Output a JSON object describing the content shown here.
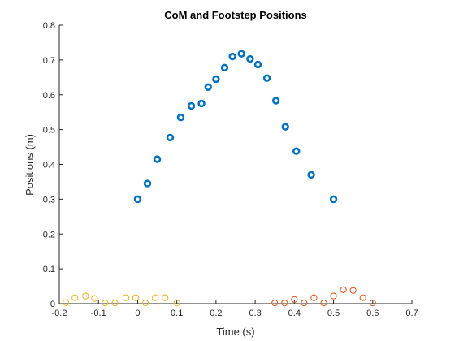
{
  "chart_data": {
    "type": "scatter",
    "title": "CoM and Footstep Positions",
    "xlabel": "Time (s)",
    "ylabel": "Positions (m)",
    "xlim": [
      -0.2,
      0.7
    ],
    "ylim": [
      0,
      0.8
    ],
    "xticks": [
      "-0.2",
      "-0.1",
      "0",
      "0.1",
      "0.2",
      "0.3",
      "0.4",
      "0.5",
      "0.6",
      "0.7"
    ],
    "yticks": [
      "0",
      "0.1",
      "0.2",
      "0.3",
      "0.4",
      "0.5",
      "0.6",
      "0.7",
      "0.8"
    ],
    "grid": false,
    "series": [
      {
        "color": "#0072BD",
        "marker": "circle-open-thick",
        "x": [
          0.0,
          0.025,
          0.05,
          0.083,
          0.11,
          0.137,
          0.163,
          0.18,
          0.2,
          0.222,
          0.242,
          0.265,
          0.287,
          0.307,
          0.33,
          0.353,
          0.377,
          0.405,
          0.443,
          0.5
        ],
        "y": [
          0.3,
          0.345,
          0.415,
          0.477,
          0.535,
          0.568,
          0.575,
          0.622,
          0.645,
          0.678,
          0.71,
          0.718,
          0.703,
          0.687,
          0.648,
          0.583,
          0.508,
          0.438,
          0.37,
          0.3
        ]
      },
      {
        "color": "#EDB120",
        "marker": "circle-open",
        "x": [
          -0.183,
          -0.16,
          -0.133,
          -0.11,
          -0.083,
          -0.058,
          -0.03,
          -0.005,
          0.02,
          0.045,
          0.07,
          0.1
        ],
        "y": [
          0.003,
          0.017,
          0.022,
          0.015,
          0.002,
          0.002,
          0.017,
          0.017,
          0.002,
          0.017,
          0.017,
          0.002
        ]
      },
      {
        "color": "#D95319",
        "marker": "circle-open",
        "x": [
          0.35,
          0.375,
          0.4,
          0.425,
          0.45,
          0.475,
          0.5,
          0.525,
          0.55,
          0.575,
          0.6
        ],
        "y": [
          0.002,
          0.002,
          0.012,
          0.002,
          0.017,
          0.002,
          0.022,
          0.04,
          0.038,
          0.017,
          0.002
        ]
      }
    ]
  }
}
